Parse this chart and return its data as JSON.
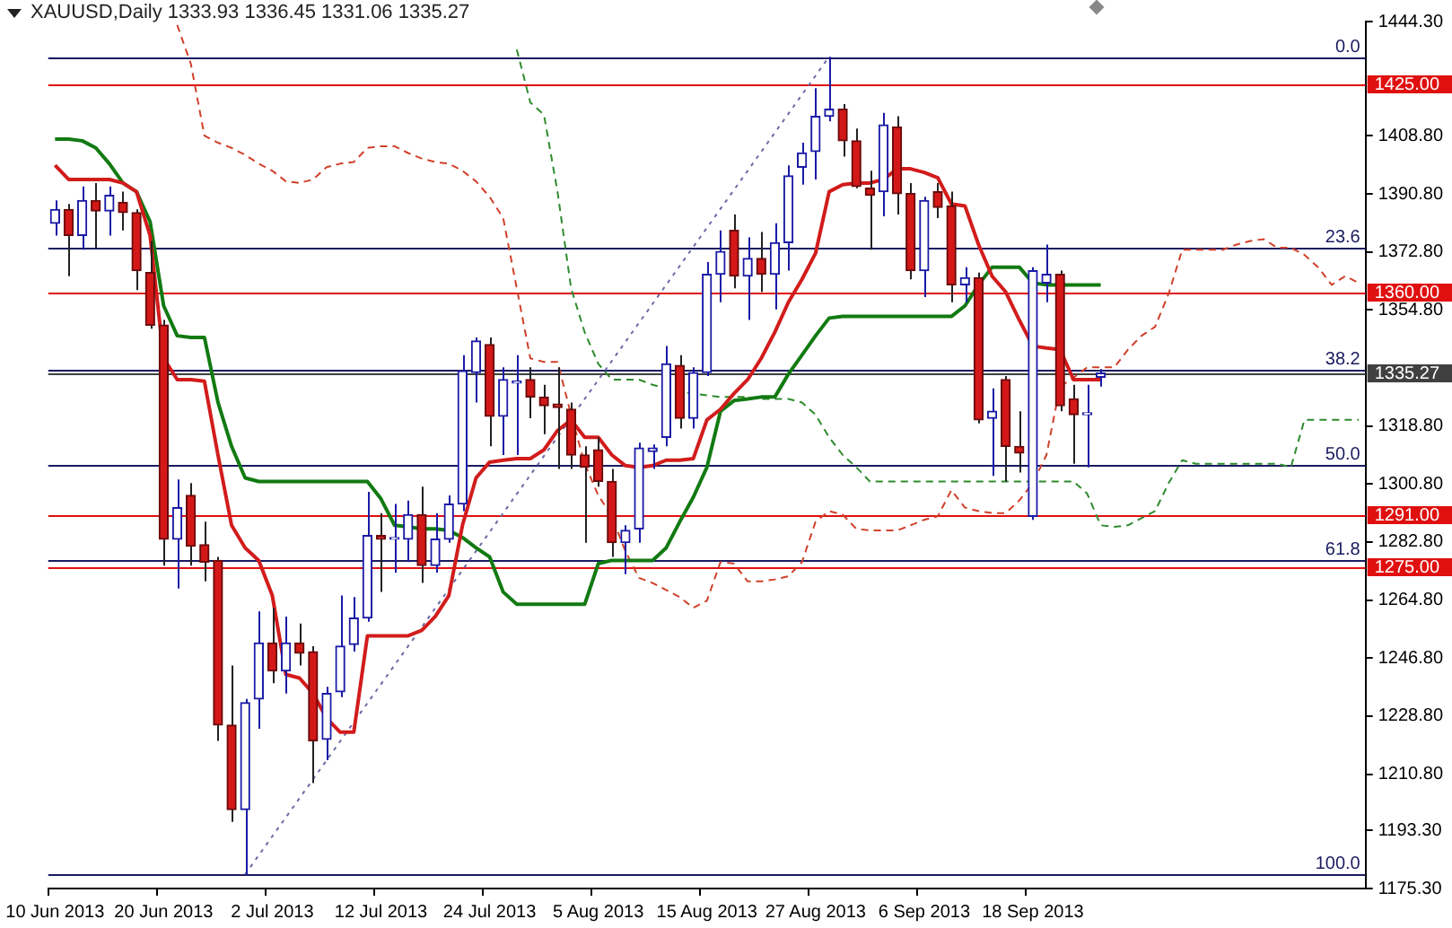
{
  "chart_data": {
    "type": "candlestick",
    "title": "XAUUSD,Daily 1333.93 1336.45 1331.06 1335.27",
    "categories": [
      "10 Jun 2013",
      null,
      null,
      null,
      null,
      null,
      null,
      null,
      "20 Jun 2013",
      null,
      null,
      null,
      null,
      null,
      null,
      null,
      "2 Jul 2013",
      null,
      null,
      null,
      null,
      null,
      null,
      null,
      "12 Jul 2013",
      null,
      null,
      null,
      null,
      null,
      null,
      null,
      "24 Jul 2013",
      null,
      null,
      null,
      null,
      null,
      null,
      null,
      "5 Aug 2013",
      null,
      null,
      null,
      null,
      null,
      null,
      null,
      "15 Aug 2013",
      null,
      null,
      null,
      null,
      null,
      null,
      null,
      "27 Aug 2013",
      null,
      null,
      null,
      null,
      null,
      null,
      null,
      "6 Sep 2013",
      null,
      null,
      null,
      null,
      null,
      null,
      null,
      "18 Sep 2013",
      null,
      null,
      null,
      null,
      null,
      null,
      null,
      null,
      null,
      null,
      null,
      null,
      null,
      null,
      null,
      null,
      null,
      null,
      null,
      null,
      null,
      null,
      null,
      null
    ],
    "ohlc": [
      [
        1381.7,
        1388.8,
        1377.9,
        1386.0
      ],
      [
        1386.0,
        1387.7,
        1365.3,
        1377.9
      ],
      [
        1377.9,
        1393.1,
        1373.5,
        1388.8
      ],
      [
        1388.8,
        1394.2,
        1374.1,
        1385.5
      ],
      [
        1385.5,
        1393.1,
        1377.9,
        1390.4
      ],
      [
        1388.2,
        1391.5,
        1379.5,
        1385.0
      ],
      [
        1385.0,
        1386.0,
        1361.0,
        1367.0
      ],
      [
        1366.4,
        1376.2,
        1349.0,
        1350.1
      ],
      [
        1350.1,
        1351.7,
        1275.5,
        1283.7
      ],
      [
        1283.7,
        1302.2,
        1268.4,
        1293.5
      ],
      [
        1297.3,
        1301.1,
        1275.5,
        1281.5
      ],
      [
        1282.0,
        1289.1,
        1270.6,
        1276.6
      ],
      [
        1277.1,
        1278.2,
        1221.1,
        1226.0
      ],
      [
        1226.0,
        1244.5,
        1196.0,
        1199.8
      ],
      [
        1199.8,
        1234.1,
        1179.7,
        1233.0
      ],
      [
        1234.1,
        1261.3,
        1224.9,
        1251.5
      ],
      [
        1251.5,
        1262.4,
        1239.0,
        1242.8
      ],
      [
        1242.8,
        1259.7,
        1235.8,
        1251.5
      ],
      [
        1251.5,
        1257.5,
        1244.5,
        1248.3
      ],
      [
        1248.8,
        1250.5,
        1208.0,
        1221.1
      ],
      [
        1221.6,
        1237.9,
        1215.1,
        1235.8
      ],
      [
        1236.3,
        1266.2,
        1234.7,
        1250.5
      ],
      [
        1251.0,
        1265.7,
        1248.8,
        1259.2
      ],
      [
        1259.2,
        1298.4,
        1258.1,
        1284.8
      ],
      [
        1284.8,
        1291.8,
        1267.3,
        1283.7
      ],
      [
        1283.7,
        1294.6,
        1273.3,
        1284.2
      ],
      [
        1283.7,
        1295.7,
        1276.6,
        1291.3
      ],
      [
        1291.3,
        1300.0,
        1270.1,
        1275.5
      ],
      [
        1275.5,
        1291.8,
        1273.3,
        1283.7
      ],
      [
        1283.7,
        1297.3,
        1282.6,
        1294.6
      ],
      [
        1294.6,
        1340.8,
        1292.4,
        1335.9
      ],
      [
        1335.4,
        1346.3,
        1326.1,
        1345.2
      ],
      [
        1344.1,
        1346.3,
        1312.5,
        1321.8
      ],
      [
        1321.8,
        1337.0,
        1309.8,
        1333.2
      ],
      [
        1332.1,
        1340.8,
        1309.8,
        1332.7
      ],
      [
        1333.2,
        1337.0,
        1321.2,
        1327.8
      ],
      [
        1327.8,
        1331.6,
        1316.3,
        1325.1
      ],
      [
        1325.6,
        1337.0,
        1305.5,
        1324.5
      ],
      [
        1324.0,
        1326.1,
        1305.5,
        1309.8
      ],
      [
        1309.8,
        1312.5,
        1282.6,
        1306.0
      ],
      [
        1311.4,
        1315.3,
        1300.0,
        1301.6
      ],
      [
        1301.6,
        1305.5,
        1278.2,
        1282.6
      ],
      [
        1282.6,
        1288.0,
        1272.8,
        1286.4
      ],
      [
        1286.9,
        1313.6,
        1282.6,
        1312.0
      ],
      [
        1310.9,
        1313.1,
        1305.5,
        1312.0
      ],
      [
        1315.3,
        1343.6,
        1312.5,
        1338.1
      ],
      [
        1337.6,
        1340.8,
        1318.0,
        1321.2
      ],
      [
        1321.2,
        1337.0,
        1318.0,
        1335.4
      ],
      [
        1335.4,
        1369.7,
        1334.3,
        1365.9
      ],
      [
        1365.9,
        1379.5,
        1357.2,
        1373.0
      ],
      [
        1379.5,
        1384.4,
        1361.5,
        1365.3
      ],
      [
        1365.3,
        1377.3,
        1351.7,
        1370.8
      ],
      [
        1370.8,
        1379.0,
        1360.4,
        1365.9
      ],
      [
        1365.9,
        1381.7,
        1355.0,
        1375.7
      ],
      [
        1375.7,
        1399.7,
        1367.0,
        1396.4
      ],
      [
        1399.1,
        1406.7,
        1393.7,
        1403.5
      ],
      [
        1404.0,
        1423.6,
        1395.3,
        1414.9
      ],
      [
        1414.9,
        1433.4,
        1413.3,
        1417.1
      ],
      [
        1417.1,
        1418.7,
        1402.4,
        1407.3
      ],
      [
        1407.3,
        1411.1,
        1392.6,
        1393.1
      ],
      [
        1392.6,
        1398.0,
        1373.5,
        1390.4
      ],
      [
        1391.5,
        1416.0,
        1383.9,
        1412.2
      ],
      [
        1411.6,
        1414.9,
        1384.4,
        1390.9
      ],
      [
        1390.9,
        1394.2,
        1364.3,
        1367.0
      ],
      [
        1367.0,
        1389.9,
        1358.8,
        1388.8
      ],
      [
        1391.5,
        1394.2,
        1383.3,
        1386.6
      ],
      [
        1387.1,
        1391.5,
        1357.2,
        1362.6
      ],
      [
        1362.6,
        1368.1,
        1357.2,
        1364.8
      ],
      [
        1364.8,
        1366.4,
        1319.6,
        1320.7
      ],
      [
        1321.2,
        1330.5,
        1303.3,
        1323.4
      ],
      [
        1333.2,
        1334.3,
        1301.6,
        1312.5
      ],
      [
        1312.5,
        1323.4,
        1304.4,
        1310.4
      ],
      [
        1290.8,
        1368.1,
        1289.7,
        1367.0
      ],
      [
        1363.2,
        1375.1,
        1357.2,
        1365.9
      ],
      [
        1365.9,
        1367.0,
        1323.4,
        1325.1
      ],
      [
        1327.2,
        1331.6,
        1307.1,
        1322.3
      ],
      [
        1322.3,
        1331.6,
        1306.0,
        1322.9
      ],
      [
        1333.93,
        1336.45,
        1331.06,
        1335.27
      ],
      null,
      null,
      null,
      null,
      null,
      null,
      null,
      null,
      null,
      null,
      null,
      null,
      null,
      null,
      null,
      null,
      null,
      null,
      null
    ],
    "series": [
      {
        "type": "line",
        "color": "#d21c1c",
        "line_style": "solid",
        "values": [
          1399.7,
          1395.3,
          1395.3,
          1395.3,
          1395.3,
          1394.2,
          1391.5,
          1377.9,
          1339.8,
          1333.2,
          1333.2,
          1332.7,
          1309.8,
          1288.0,
          1281.0,
          1277.1,
          1266.2,
          1241.7,
          1240.6,
          1235.8,
          1228.1,
          1223.8,
          1223.8,
          1253.7,
          1253.7,
          1253.7,
          1253.7,
          1255.4,
          1259.7,
          1266.2,
          1288.0,
          1302.7,
          1307.6,
          1308.2,
          1308.7,
          1308.7,
          1311.4,
          1317.4,
          1320.7,
          1315.3,
          1315.3,
          1309.8,
          1306.5,
          1306.0,
          1306.5,
          1308.2,
          1308.2,
          1308.7,
          1320.7,
          1324.0,
          1328.9,
          1333.2,
          1339.8,
          1347.9,
          1357.2,
          1364.3,
          1372.4,
          1391.5,
          1393.7,
          1394.2,
          1394.2,
          1395.3,
          1398.6,
          1398.6,
          1397.5,
          1395.8,
          1387.7,
          1387.1,
          1375.1,
          1365.3,
          1360.4,
          1351.7,
          1343.6,
          1343.0,
          1342.5,
          1333.2,
          1333.2,
          1333.2,
          null,
          null,
          null,
          null,
          null,
          null,
          null,
          null,
          null,
          null,
          null,
          null,
          null,
          null,
          null,
          null,
          null,
          null,
          null
        ]
      },
      {
        "type": "line",
        "color": "#127a12",
        "line_style": "solid",
        "values": [
          1407.8,
          1407.8,
          1407.3,
          1405.1,
          1400.2,
          1394.2,
          1391.5,
          1382.2,
          1356.1,
          1346.8,
          1346.3,
          1346.3,
          1326.1,
          1312.5,
          1302.7,
          1301.6,
          1301.6,
          1301.6,
          1301.6,
          1301.6,
          1301.6,
          1301.6,
          1301.6,
          1301.6,
          1296.2,
          1288.0,
          1287.5,
          1286.9,
          1286.9,
          1286.4,
          1284.2,
          1281.0,
          1278.2,
          1267.3,
          1263.5,
          1263.5,
          1263.5,
          1263.5,
          1263.5,
          1263.5,
          1276.1,
          1277.1,
          1277.1,
          1277.1,
          1277.1,
          1281.0,
          1289.1,
          1296.7,
          1306.0,
          1323.4,
          1326.7,
          1327.2,
          1327.8,
          1327.8,
          1334.9,
          1340.8,
          1346.8,
          1352.3,
          1352.8,
          1352.8,
          1352.8,
          1352.8,
          1352.8,
          1352.8,
          1352.8,
          1352.8,
          1352.8,
          1356.1,
          1362.6,
          1368.1,
          1368.1,
          1368.1,
          1363.2,
          1362.6,
          1362.6,
          1362.6,
          1362.6,
          1362.6,
          null,
          null,
          null,
          null,
          null,
          null,
          null,
          null,
          null,
          null,
          null,
          null,
          null,
          null,
          null,
          null,
          null,
          null,
          null
        ]
      },
      {
        "type": "line",
        "color": "#d0402a",
        "line_style": "dashed",
        "values": [
          null,
          null,
          null,
          null,
          null,
          null,
          null,
          null,
          null,
          1443.2,
          1431.2,
          1408.9,
          1406.7,
          1405.1,
          1402.9,
          1400.2,
          1398.0,
          1394.7,
          1394.2,
          1395.3,
          1399.1,
          1400.2,
          1400.7,
          1405.1,
          1405.6,
          1405.6,
          1403.5,
          1401.8,
          1400.7,
          1400.2,
          1398.0,
          1394.7,
          1389.9,
          1383.3,
          1361.5,
          1339.8,
          1338.7,
          1338.7,
          1322.3,
          1307.1,
          1297.3,
          1290.8,
          1279.9,
          1271.7,
          1270.1,
          1267.9,
          1265.7,
          1262.4,
          1264.6,
          1276.6,
          1276.1,
          1270.6,
          1270.6,
          1271.2,
          1272.2,
          1276.6,
          1289.1,
          1292.4,
          1291.3,
          1286.9,
          1286.4,
          1286.4,
          1286.4,
          1288.0,
          1289.7,
          1290.8,
          1298.9,
          1293.5,
          1292.4,
          1291.8,
          1291.8,
          1295.7,
          1301.1,
          1309.8,
          1331.0,
          1333.8,
          1337.0,
          1337.0,
          1337.0,
          1342.5,
          1346.8,
          1349.6,
          1359.9,
          1373.5,
          1373.5,
          1373.5,
          1373.5,
          1375.1,
          1376.2,
          1376.8,
          1374.1,
          1374.1,
          1371.9,
          1368.1,
          1362.6,
          1365.3,
          1363.2
        ]
      },
      {
        "type": "line",
        "color": "#2e8b2e",
        "line_style": "dashed",
        "values": [
          null,
          null,
          null,
          null,
          null,
          null,
          null,
          null,
          null,
          null,
          null,
          null,
          null,
          null,
          null,
          null,
          null,
          null,
          null,
          null,
          null,
          null,
          null,
          null,
          null,
          null,
          null,
          null,
          null,
          null,
          null,
          null,
          null,
          null,
          1435.6,
          1419.2,
          1415.4,
          1391.5,
          1361.5,
          1347.9,
          1338.1,
          1333.2,
          1333.2,
          1333.2,
          1331.6,
          null,
          1329.4,
          1328.9,
          1328.3,
          1327.8,
          1327.8,
          1327.8,
          1327.2,
          1327.2,
          1327.2,
          1326.1,
          1322.3,
          1315.3,
          1309.8,
          1306.0,
          1301.6,
          1301.6,
          1301.6,
          1301.6,
          1301.6,
          1301.6,
          1301.6,
          1301.6,
          1301.6,
          1301.6,
          1301.6,
          1301.6,
          1301.6,
          1301.6,
          1301.6,
          1301.6,
          1297.8,
          1288.0,
          1287.5,
          1288.0,
          1290.2,
          1292.4,
          1301.1,
          1308.2,
          1307.1,
          1307.1,
          1307.1,
          1307.1,
          1307.1,
          1307.1,
          1307.1,
          1306.0,
          1320.7,
          1320.7,
          1320.7,
          1320.7,
          1320.7
        ]
      },
      {
        "type": "line",
        "color": "#6a6aa8",
        "line_style": "dotted",
        "values": [
          null,
          null,
          null,
          null,
          null,
          null,
          null,
          null,
          null,
          null,
          null,
          null,
          null,
          null,
          1179.7,
          null,
          null,
          null,
          null,
          null,
          null,
          null,
          null,
          null,
          null,
          null,
          null,
          null,
          null,
          null,
          null,
          null,
          null,
          null,
          null,
          null,
          null,
          null,
          null,
          null,
          null,
          null,
          null,
          null,
          null,
          null,
          null,
          null,
          null,
          null,
          null,
          null,
          null,
          null,
          null,
          null,
          null,
          1433.4,
          null,
          null,
          null,
          null,
          null,
          null,
          null,
          null,
          null,
          null,
          null,
          null,
          null,
          null,
          null,
          null,
          null,
          null,
          null,
          null,
          null,
          null,
          null,
          null,
          null,
          null,
          null,
          null,
          null,
          null,
          null,
          null,
          null,
          null,
          null,
          null,
          null,
          null,
          null
        ]
      }
    ],
    "ylim": [
      1175.3,
      1444.3
    ],
    "yticks": [
      {
        "value": 1444.3,
        "label": "1444.30"
      },
      {
        "value": 1408.8,
        "label": "1408.80"
      },
      {
        "value": 1390.8,
        "label": "1390.80"
      },
      {
        "value": 1372.8,
        "label": "1372.80"
      },
      {
        "value": 1354.8,
        "label": "1354.80"
      },
      {
        "value": 1318.8,
        "label": "1318.80"
      },
      {
        "value": 1300.8,
        "label": "1300.80"
      },
      {
        "value": 1282.8,
        "label": "1282.80"
      },
      {
        "value": 1264.8,
        "label": "1264.80"
      },
      {
        "value": 1246.8,
        "label": "1246.80"
      },
      {
        "value": 1228.8,
        "label": "1228.80"
      },
      {
        "value": 1210.8,
        "label": "1210.80"
      },
      {
        "value": 1193.3,
        "label": "1193.30"
      },
      {
        "value": 1175.3,
        "label": "1175.30"
      }
    ],
    "ref_lines": [
      {
        "axis": "y",
        "value": 1425,
        "label": "1425.00",
        "color": "#e01010"
      },
      {
        "axis": "y",
        "value": 1360,
        "label": "1360.00",
        "color": "#e01010"
      },
      {
        "axis": "y",
        "value": 1291,
        "label": "1291.00",
        "color": "#e01010"
      },
      {
        "axis": "y",
        "value": 1275,
        "label": "1275.00",
        "color": "#e01010"
      },
      {
        "axis": "y",
        "value": 1335.27,
        "label": "1335.27",
        "color": "#404040"
      },
      {
        "axis": "y",
        "value": 1433.4,
        "color": "#1a1a60"
      },
      {
        "axis": "y",
        "value": 1374.1,
        "color": "#1a1a60"
      },
      {
        "axis": "y",
        "value": 1336.5,
        "color": "#1a1a60"
      },
      {
        "axis": "y",
        "value": 1306.5,
        "color": "#1a1a60"
      },
      {
        "axis": "y",
        "value": 1277.1,
        "color": "#1a1a60"
      },
      {
        "axis": "y",
        "value": 1179.7,
        "color": "#1a1a60"
      }
    ],
    "annotations": [
      {
        "text": "0.0",
        "y": 1433.4
      },
      {
        "text": "23.6",
        "y": 1374.1
      },
      {
        "text": "38.2",
        "y": 1336.5
      },
      {
        "text": "50.0",
        "y": 1306.5
      },
      {
        "text": "61.8",
        "y": 1277.1
      },
      {
        "text": "100.0",
        "y": 1179.7
      }
    ],
    "marker": "none",
    "grid": false,
    "legend": false
  }
}
